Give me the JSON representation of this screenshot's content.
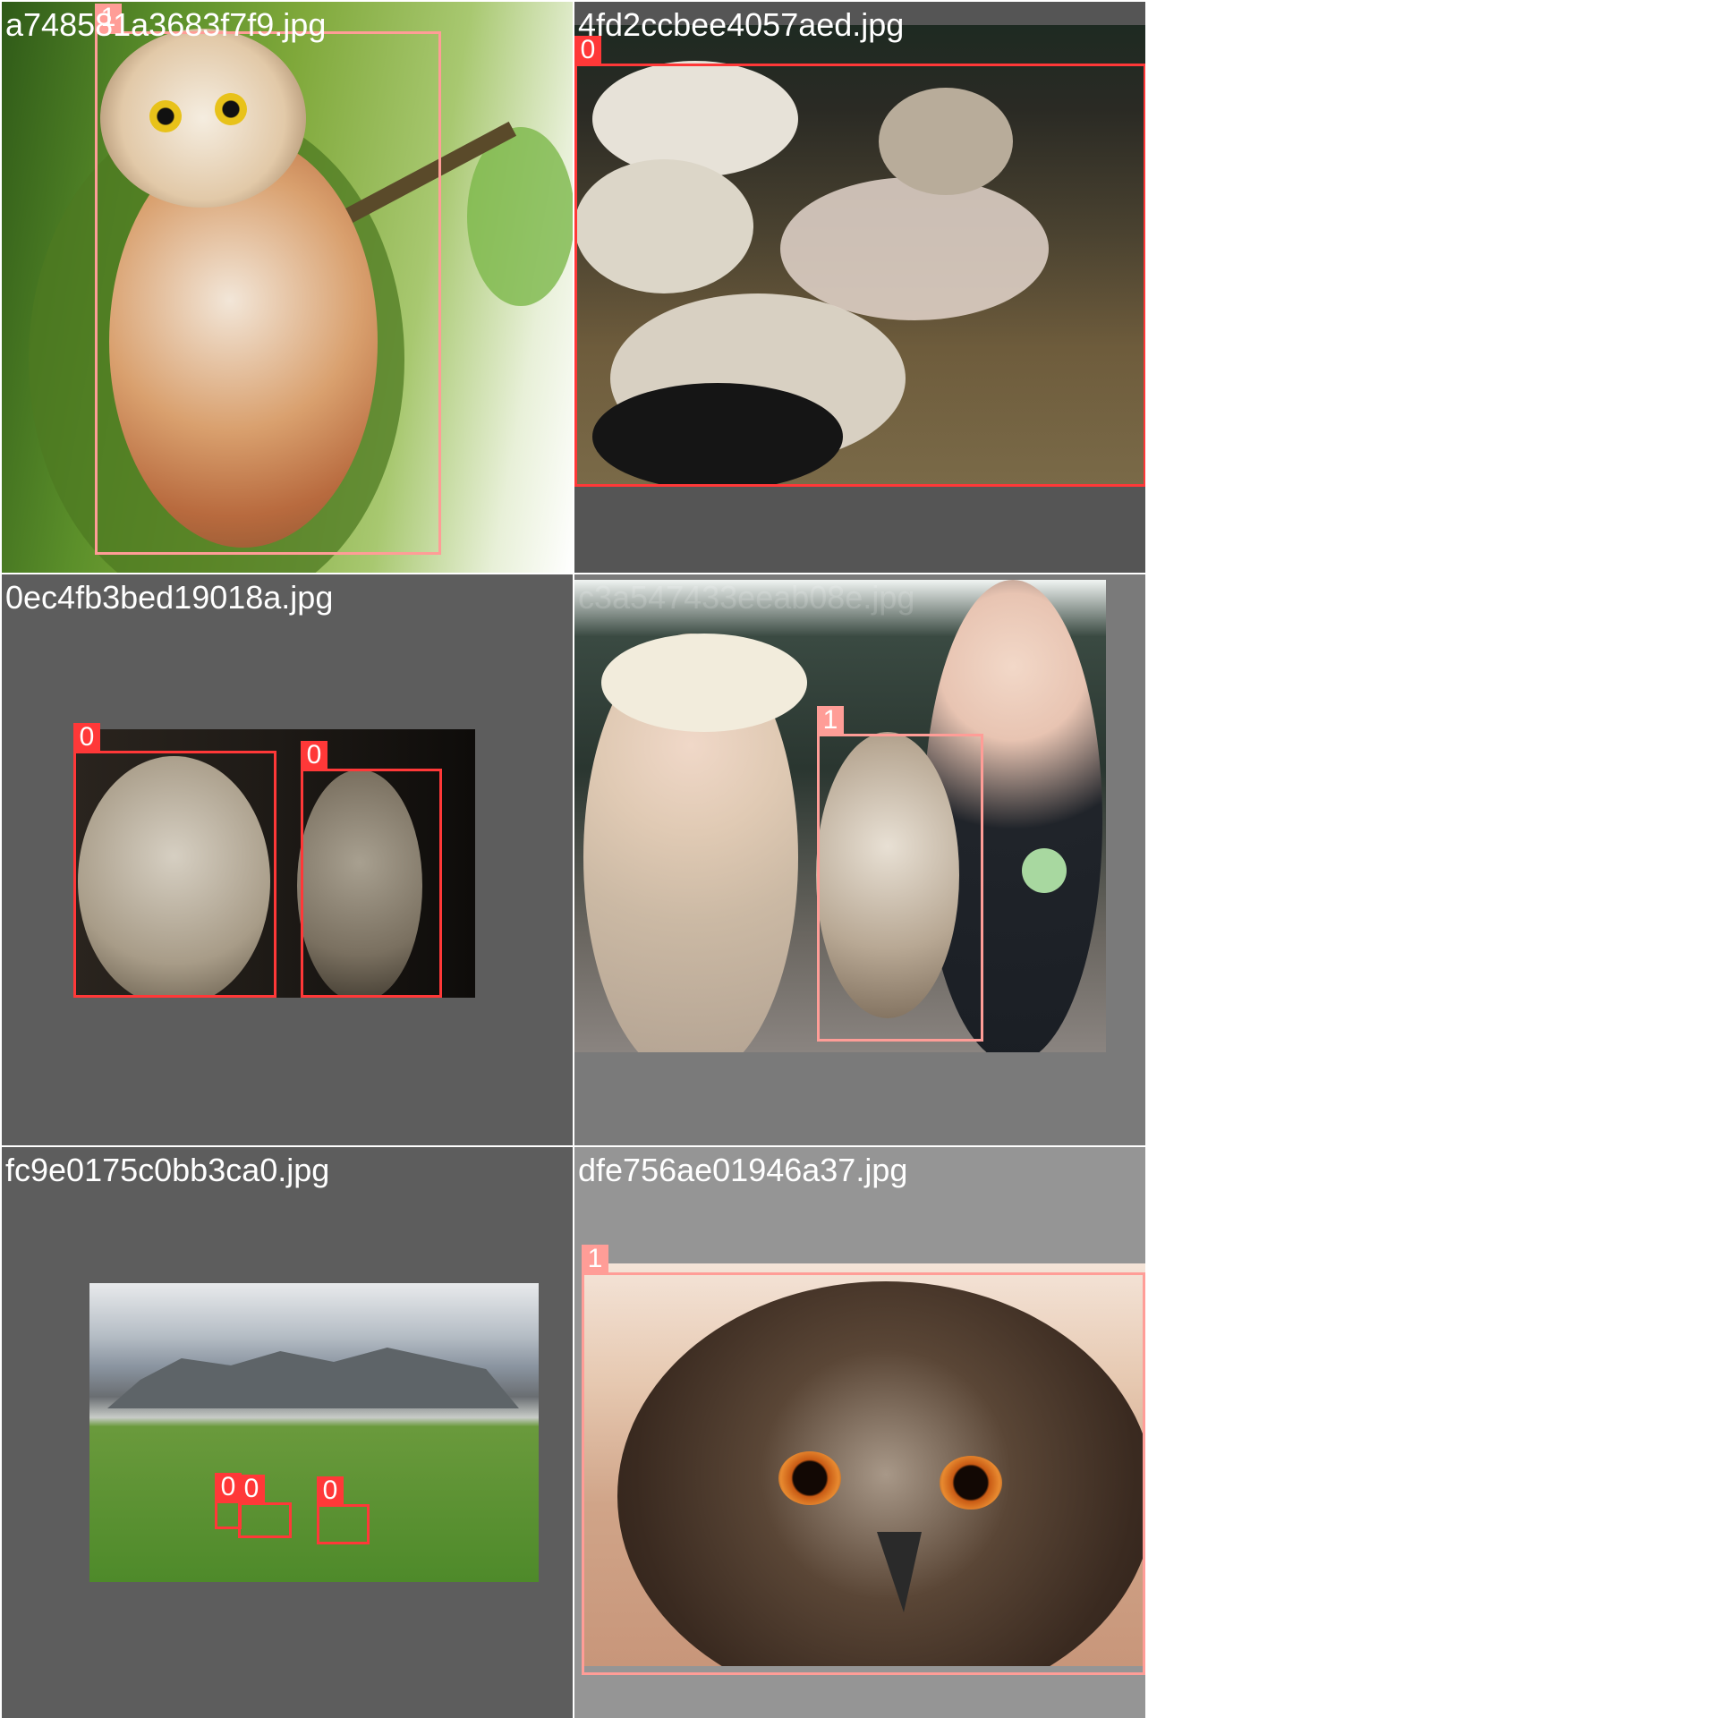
{
  "grid_title": "",
  "tiles": [
    {
      "filename": "a748581a3683f7f9.jpg",
      "boxes": [
        {
          "class_label": "1"
        }
      ]
    },
    {
      "filename": "4fd2ccbee4057aed.jpg",
      "boxes": [
        {
          "class_label": "0"
        }
      ]
    },
    {
      "filename": "0ec4fb3bed19018a.jpg",
      "boxes": [
        {
          "class_label": "0"
        },
        {
          "class_label": "0"
        }
      ]
    },
    {
      "filename": "c3a547433eeab08e.jpg",
      "boxes": [
        {
          "class_label": "1"
        }
      ]
    },
    {
      "filename": "fc9e0175c0bb3ca0.jpg",
      "boxes": [
        {
          "class_label": "0"
        },
        {
          "class_label": "0"
        },
        {
          "class_label": "0"
        }
      ]
    },
    {
      "filename": "dfe756ae01946a37.jpg",
      "boxes": [
        {
          "class_label": "1"
        }
      ]
    }
  ],
  "colors": {
    "class_0": "#ff3838",
    "class_1": "#ff9d97",
    "grid_line": "#ffffff",
    "tile_background_dark": "#5d5d5d",
    "tile_background_mid": "#7a7a7a",
    "tile_background_light": "#959595"
  }
}
